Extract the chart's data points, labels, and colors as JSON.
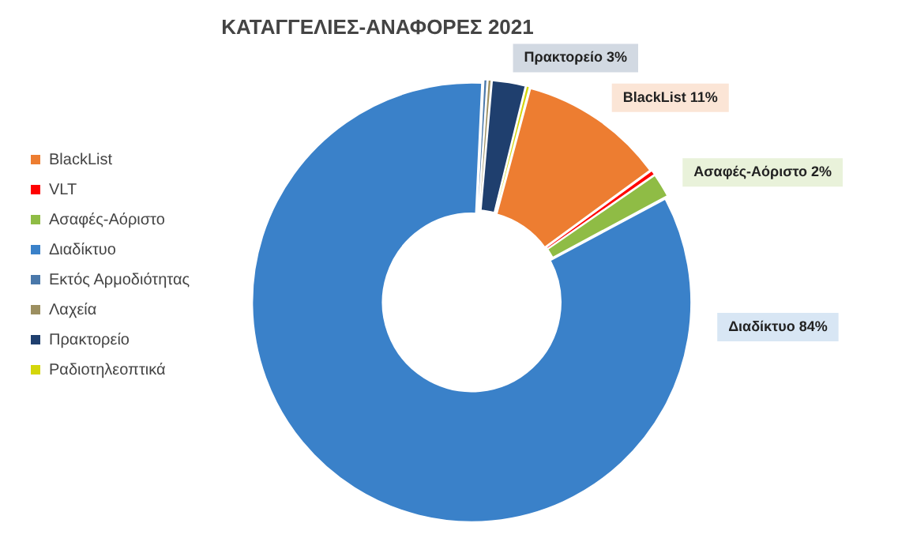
{
  "chart_data": {
    "type": "donut",
    "title": "ΚΑΤΑΓΓΕΛΙΕΣ-ΑΝΑΦΟΡΕΣ 2021",
    "categories": [
      "BlackList",
      "VLT",
      "Ασαφές-Αόριστο",
      "Διαδίκτυο",
      "Εκτός Αρμοδιότητας",
      "Λαχεία",
      "Πρακτορείο",
      "Ραδιοτηλεοπτικά"
    ],
    "values": [
      10.8,
      0.4,
      1.8,
      83.6,
      0.3,
      0.3,
      2.5,
      0.3
    ],
    "value_labels": [
      "11%",
      null,
      "2%",
      "84%",
      null,
      null,
      "3%",
      null
    ],
    "colors": [
      "#ed7d31",
      "#ff0000",
      "#8fbc45",
      "#3a81c9",
      "#4a78aa",
      "#9c8f60",
      "#1f3f6e",
      "#d4d60a"
    ],
    "legend": "left"
  }
}
